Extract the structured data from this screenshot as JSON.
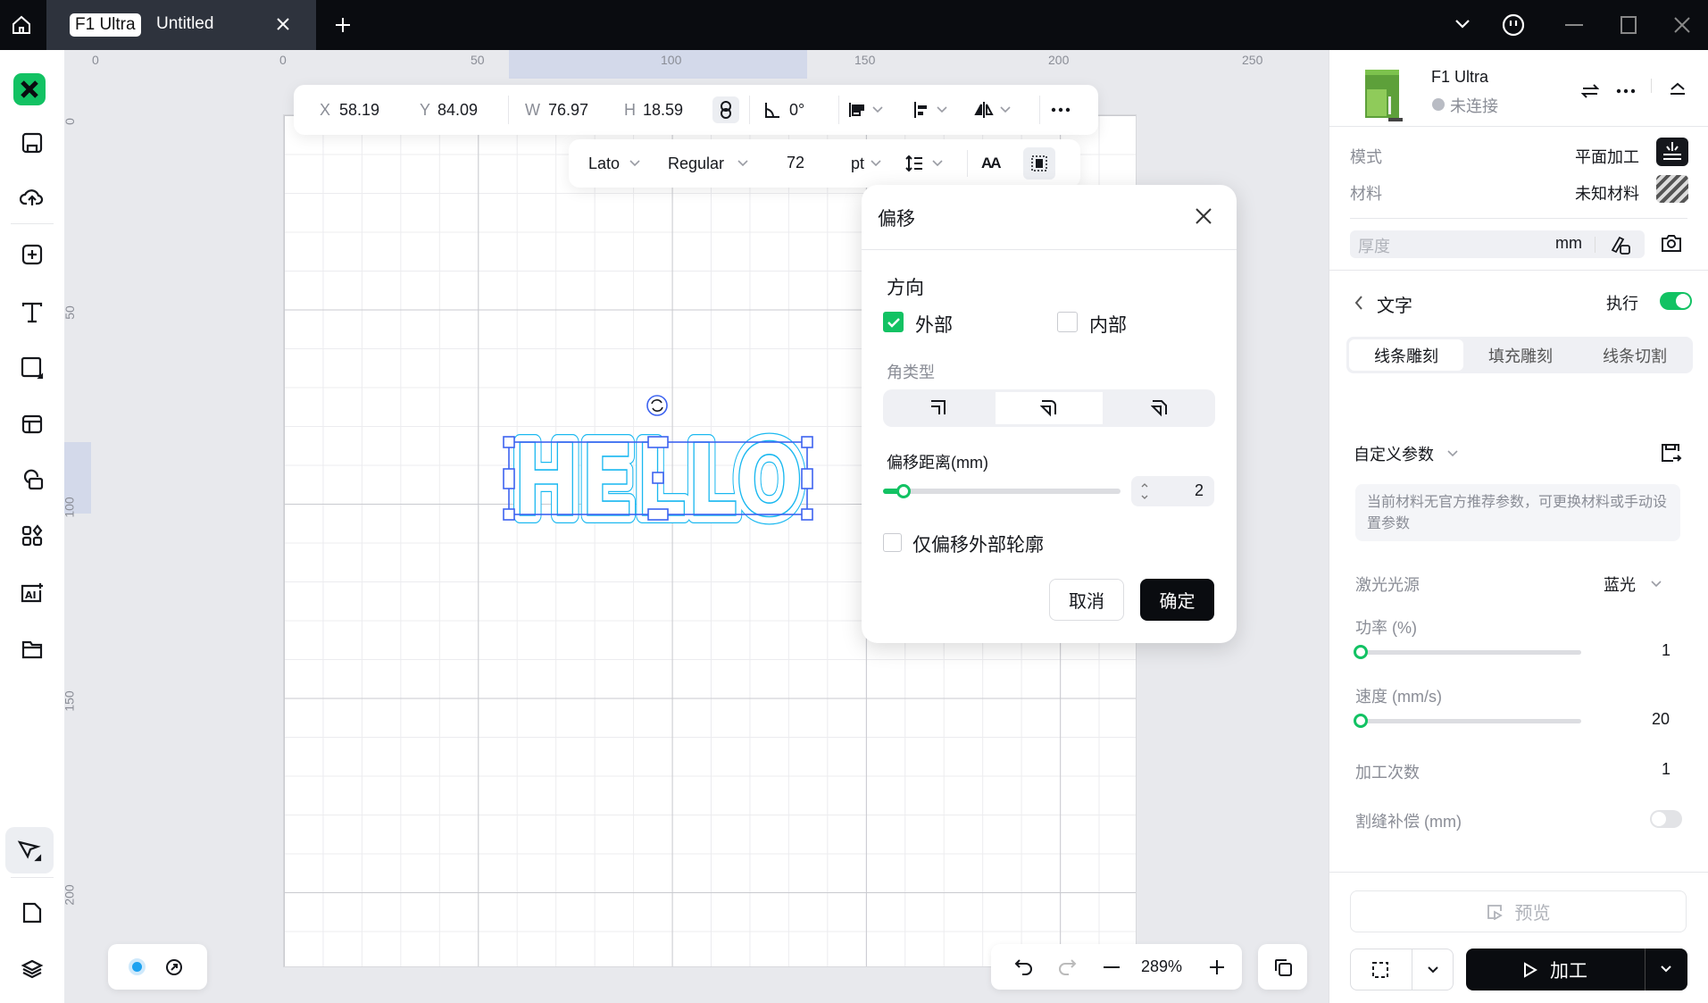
{
  "titlebar": {
    "tab_badge": "F1 Ultra",
    "tab_title": "Untitled",
    "icons": [
      "home-icon",
      "close-icon",
      "plus-icon",
      "chevron-down-icon",
      "face-icon",
      "minimize-icon",
      "maximize-icon",
      "window-close-icon"
    ]
  },
  "ruler": {
    "top": [
      "0",
      "0",
      "50",
      "100",
      "150",
      "200",
      "250"
    ],
    "left": [
      "0",
      "50",
      "100",
      "150",
      "200"
    ]
  },
  "toolbar": {
    "x_label": "X",
    "x": "58.19",
    "y_label": "Y",
    "y": "84.09",
    "w_label": "W",
    "w": "76.97",
    "h_label": "H",
    "h": "18.59",
    "angle": "0°"
  },
  "text_toolbar": {
    "font": "Lato",
    "style": "Regular",
    "size": "72",
    "unit": "pt",
    "case": "AA"
  },
  "canvas": {
    "text": "HELLO",
    "selection_color": "#3d63f0",
    "outline_color": "#1ab8f0"
  },
  "dialog": {
    "title": "偏移",
    "direction_label": "方向",
    "outer_label": "外部",
    "outer_checked": true,
    "inner_label": "内部",
    "inner_checked": false,
    "corner_label": "角类型",
    "corner_selected": 1,
    "distance_label": "偏移距离(mm)",
    "distance": "2",
    "distance_fraction": 0.04,
    "outer_only_label": "仅偏移外部轮廓",
    "outer_only_checked": false,
    "cancel": "取消",
    "confirm": "确定"
  },
  "zoom": {
    "level": "289%"
  },
  "right": {
    "machine": "F1 Ultra",
    "status": "未连接",
    "mode_label": "模式",
    "mode": "平面加工",
    "material_label": "材料",
    "material": "未知材料",
    "thickness_placeholder": "厚度",
    "thickness_unit": "mm",
    "layer": "文字",
    "execute_label": "执行",
    "execute_on": true,
    "tabs": [
      "线条雕刻",
      "填充雕刻",
      "线条切割"
    ],
    "active_tab": 0,
    "params": "自定义参数",
    "hint": "当前材料无官方推荐参数，可更换材料或手动设置参数",
    "laser_label": "激光光源",
    "laser": "蓝光",
    "power_label": "功率 (%)",
    "power": "1",
    "speed_label": "速度 (mm/s)",
    "speed": "20",
    "passes_label": "加工次数",
    "passes": "1",
    "kerf_label": "割缝补偿 (mm)",
    "kerf_on": false,
    "preview": "预览",
    "process": "加工",
    "accent": "#12c263"
  }
}
